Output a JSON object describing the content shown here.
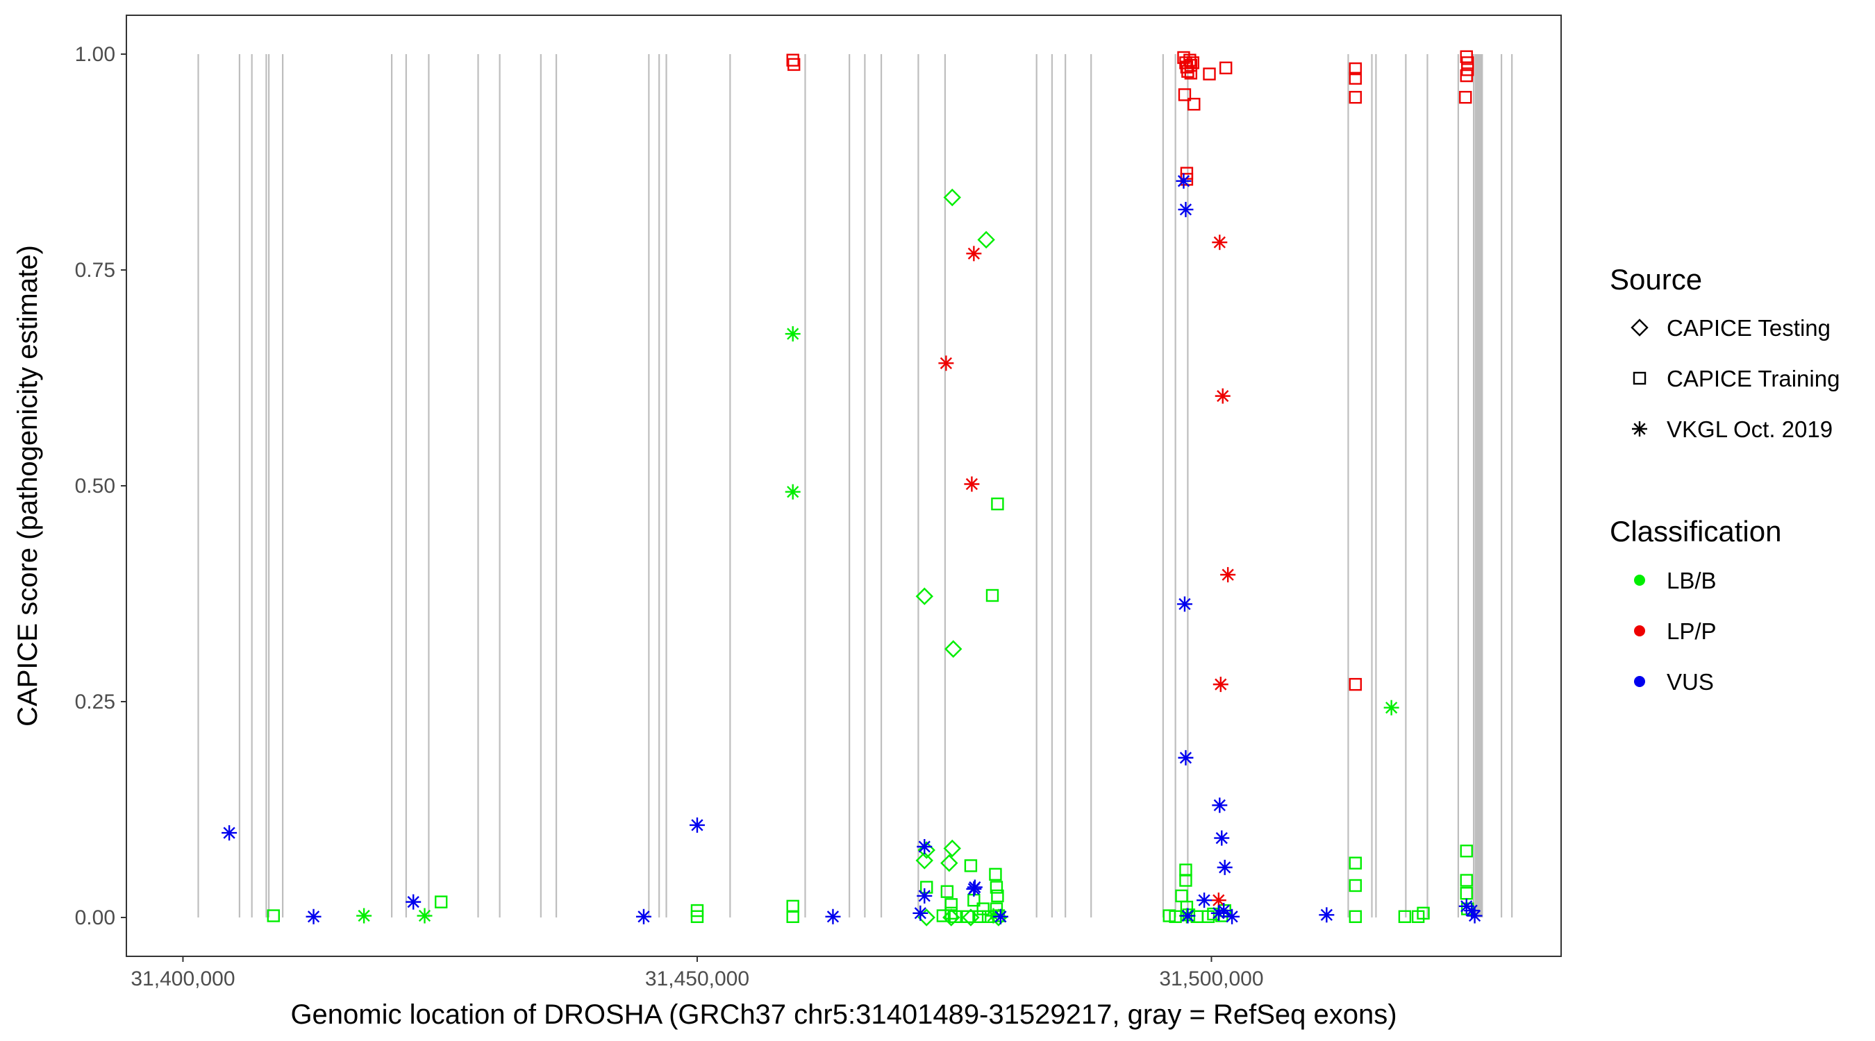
{
  "chart_data": {
    "type": "scatter",
    "title": "",
    "xlabel": "Genomic location of DROSHA (GRCh37 chr5:31401489-31529217, gray = RefSeq exons)",
    "ylabel": "CAPICE score (pathogenicity estimate)",
    "xlim": [
      31394500,
      31534000
    ],
    "ylim": [
      -0.045,
      1.045
    ],
    "x_ticks": [
      31400000,
      31450000,
      31500000
    ],
    "x_tick_labels": [
      "31,400,000",
      "31,450,000",
      "31,500,000"
    ],
    "y_ticks": [
      0.0,
      0.25,
      0.5,
      0.75,
      1.0
    ],
    "y_tick_labels": [
      "0.00",
      "0.25",
      "0.50",
      "0.75",
      "1.00"
    ],
    "grid": false,
    "exons": [
      31401489,
      31405500,
      31406700,
      31408100,
      31408350,
      31409700,
      31420300,
      31421700,
      31423900,
      31428700,
      31430800,
      31434800,
      31436300,
      31445300,
      31446300,
      31447000,
      31453200,
      31460500,
      31464800,
      31466300,
      31467900,
      31471500,
      31474100,
      31483000,
      31484500,
      31485800,
      31488300,
      31495300,
      31496500,
      31497700,
      31513300,
      31515600,
      31516000,
      31518900,
      31521000,
      31524000,
      31525500,
      31525800,
      31526000,
      31526200,
      31528200,
      31529217
    ],
    "exon_band": [
      31525600,
      31526400
    ],
    "legend_position": "right",
    "legend": {
      "source_title": "Source",
      "source_items": [
        {
          "label": "CAPICE Testing",
          "shape": "diamond"
        },
        {
          "label": "CAPICE Training",
          "shape": "square"
        },
        {
          "label": "VKGL Oct. 2019",
          "shape": "asterisk"
        }
      ],
      "class_title": "Classification",
      "class_items": [
        {
          "label": "LB/B",
          "color": "#00EE00"
        },
        {
          "label": "LP/P",
          "color": "#EE0000"
        },
        {
          "label": "VUS",
          "color": "#0000EE"
        }
      ]
    },
    "series": [
      {
        "name": "CAPICE Testing",
        "shape": "diamond",
        "classification": "LB/B",
        "color": "#00EE00",
        "points": [
          [
            31474800,
            0.834
          ],
          [
            31478100,
            0.785
          ],
          [
            31472100,
            0.372
          ],
          [
            31474900,
            0.311
          ],
          [
            31472100,
            0.066
          ],
          [
            31472300,
            0.078
          ],
          [
            31474800,
            0.08
          ],
          [
            31474500,
            0.063
          ],
          [
            31472300,
            0.0
          ],
          [
            31474700,
            0.0
          ],
          [
            31476600,
            0.0
          ],
          [
            31479300,
            0.0
          ]
        ]
      },
      {
        "name": "CAPICE Training",
        "shape": "square",
        "classification": "LB/B",
        "color": "#00EE00",
        "points": [
          [
            31408800,
            0.002
          ],
          [
            31425100,
            0.018
          ],
          [
            31450000,
            0.008
          ],
          [
            31450000,
            0.001
          ],
          [
            31459300,
            0.013
          ],
          [
            31459300,
            0.001
          ],
          [
            31472300,
            0.035
          ],
          [
            31474300,
            0.03
          ],
          [
            31474700,
            0.015
          ],
          [
            31474700,
            0.005
          ],
          [
            31476600,
            0.06
          ],
          [
            31476900,
            0.02
          ],
          [
            31477800,
            0.01
          ],
          [
            31478700,
            0.373
          ],
          [
            31479200,
            0.479
          ],
          [
            31479000,
            0.05
          ],
          [
            31479100,
            0.035
          ],
          [
            31479200,
            0.025
          ],
          [
            31479100,
            0.01
          ],
          [
            31479300,
            0.002
          ],
          [
            31473900,
            0.002
          ],
          [
            31475100,
            0.001
          ],
          [
            31476300,
            0.001
          ],
          [
            31477500,
            0.001
          ],
          [
            31478300,
            0.001
          ],
          [
            31495900,
            0.002
          ],
          [
            31496500,
            0.001
          ],
          [
            31497100,
            0.025
          ],
          [
            31497500,
            0.043
          ],
          [
            31497500,
            0.055
          ],
          [
            31497600,
            0.012
          ],
          [
            31497800,
            0.003
          ],
          [
            31498600,
            0.001
          ],
          [
            31499700,
            0.001
          ],
          [
            31500200,
            0.004
          ],
          [
            31501000,
            0.002
          ],
          [
            31501300,
            0.008
          ],
          [
            31514000,
            0.063
          ],
          [
            31514000,
            0.037
          ],
          [
            31514000,
            0.001
          ],
          [
            31518800,
            0.001
          ],
          [
            31520100,
            0.001
          ],
          [
            31520600,
            0.005
          ],
          [
            31524800,
            0.077
          ],
          [
            31524800,
            0.043
          ],
          [
            31524800,
            0.028
          ],
          [
            31524900,
            0.01
          ]
        ]
      },
      {
        "name": "VKGL Oct. 2019",
        "shape": "asterisk",
        "classification": "LB/B",
        "color": "#00EE00",
        "points": [
          [
            31459300,
            0.676
          ],
          [
            31459300,
            0.493
          ],
          [
            31417600,
            0.002
          ],
          [
            31423500,
            0.002
          ],
          [
            31478800,
            0.002
          ],
          [
            31479500,
            0.001
          ],
          [
            31497600,
            0.002
          ],
          [
            31517500,
            0.243
          ]
        ]
      },
      {
        "name": "CAPICE Training",
        "shape": "square",
        "classification": "LP/P",
        "color": "#EE0000",
        "points": [
          [
            31459300,
            0.993
          ],
          [
            31459400,
            0.988
          ],
          [
            31497300,
            0.996
          ],
          [
            31497500,
            0.99
          ],
          [
            31497600,
            0.985
          ],
          [
            31497700,
            0.98
          ],
          [
            31497900,
            0.993
          ],
          [
            31498000,
            0.987
          ],
          [
            31498200,
            0.99
          ],
          [
            31498000,
            0.978
          ],
          [
            31497400,
            0.953
          ],
          [
            31498300,
            0.942
          ],
          [
            31499800,
            0.977
          ],
          [
            31501400,
            0.984
          ],
          [
            31497600,
            0.862
          ],
          [
            31497600,
            0.855
          ],
          [
            31514000,
            0.983
          ],
          [
            31514000,
            0.972
          ],
          [
            31514000,
            0.95
          ],
          [
            31514000,
            0.27
          ],
          [
            31524800,
            0.997
          ],
          [
            31524900,
            0.99
          ],
          [
            31524900,
            0.982
          ],
          [
            31524800,
            0.975
          ],
          [
            31524700,
            0.95
          ]
        ]
      },
      {
        "name": "VKGL Oct. 2019",
        "shape": "asterisk",
        "classification": "LP/P",
        "color": "#EE0000",
        "points": [
          [
            31476900,
            0.769
          ],
          [
            31474200,
            0.642
          ],
          [
            31476700,
            0.502
          ],
          [
            31500800,
            0.782
          ],
          [
            31501100,
            0.604
          ],
          [
            31501600,
            0.397
          ],
          [
            31500900,
            0.27
          ],
          [
            31500700,
            0.02
          ]
        ]
      },
      {
        "name": "VKGL Oct. 2019",
        "shape": "asterisk",
        "classification": "VUS",
        "color": "#0000EE",
        "points": [
          [
            31404500,
            0.098
          ],
          [
            31412700,
            0.001
          ],
          [
            31422400,
            0.018
          ],
          [
            31444800,
            0.001
          ],
          [
            31450000,
            0.107
          ],
          [
            31463200,
            0.001
          ],
          [
            31471700,
            0.005
          ],
          [
            31472100,
            0.025
          ],
          [
            31472100,
            0.082
          ],
          [
            31476900,
            0.033
          ],
          [
            31477000,
            0.035
          ],
          [
            31479500,
            0.001
          ],
          [
            31497300,
            0.853
          ],
          [
            31497500,
            0.82
          ],
          [
            31497400,
            0.363
          ],
          [
            31497500,
            0.185
          ],
          [
            31500800,
            0.13
          ],
          [
            31501000,
            0.092
          ],
          [
            31501300,
            0.058
          ],
          [
            31499300,
            0.02
          ],
          [
            31497700,
            0.002
          ],
          [
            31500700,
            0.005
          ],
          [
            31501200,
            0.008
          ],
          [
            31502000,
            0.001
          ],
          [
            31511200,
            0.003
          ],
          [
            31524800,
            0.013
          ],
          [
            31525300,
            0.008
          ],
          [
            31525600,
            0.002
          ]
        ]
      }
    ]
  }
}
